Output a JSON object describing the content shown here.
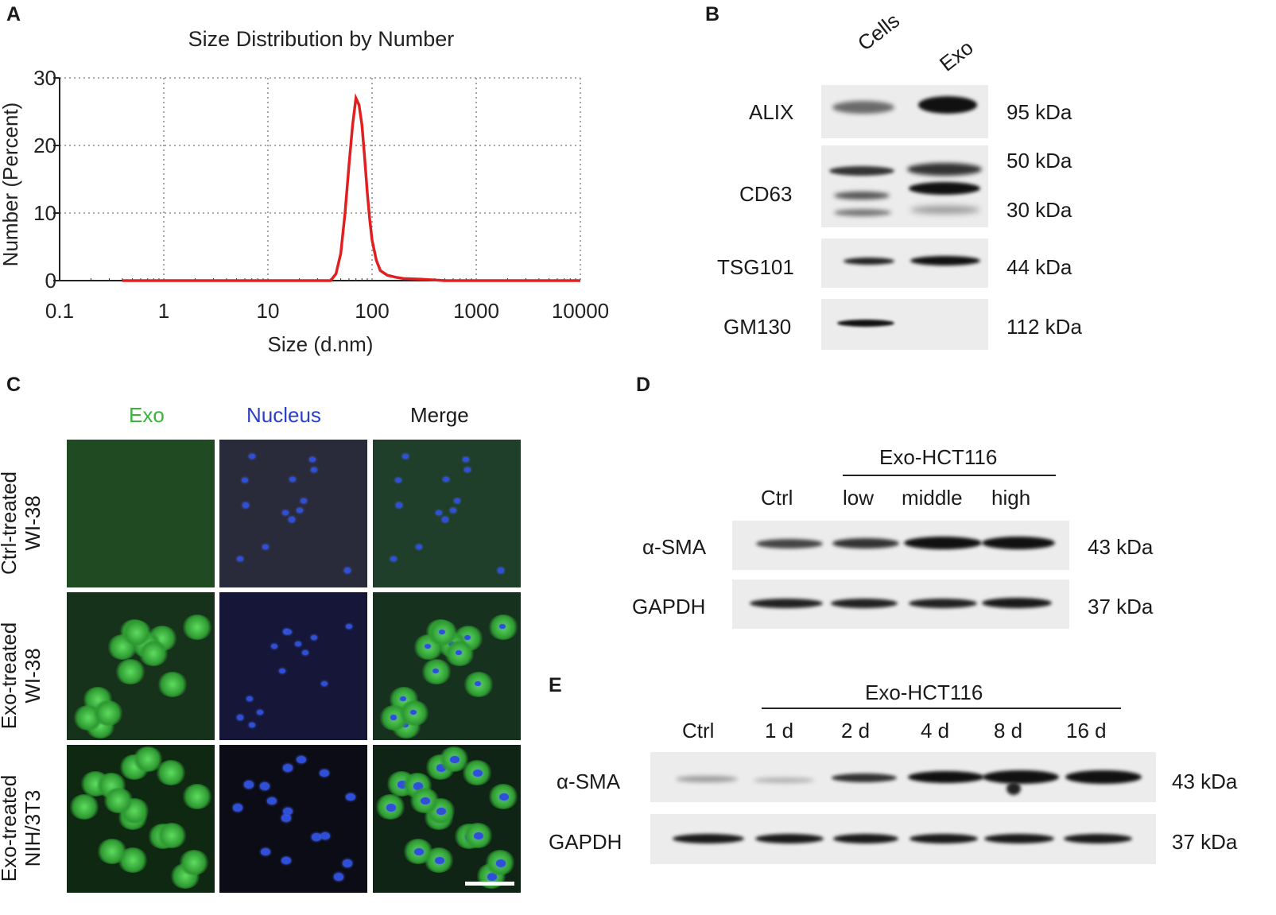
{
  "panels": {
    "A": {
      "label": "A",
      "chart_data": {
        "type": "line",
        "title": "Size Distribution by Number",
        "xlabel": "Size (d.nm)",
        "ylabel": "Number (Percent)",
        "xscale": "log",
        "xlim": [
          0.1,
          10000
        ],
        "ylim": [
          0,
          30
        ],
        "xticks": [
          "0.1",
          "1",
          "10",
          "100",
          "1000",
          "10000"
        ],
        "yticks": [
          "0",
          "10",
          "20",
          "30"
        ],
        "grid": true,
        "series": [
          {
            "color": "#e02020",
            "x": [
              0.4,
              1,
              10,
              40,
              45,
              50,
              55,
              60,
              65,
              70,
              75,
              80,
              85,
              90,
              95,
              100,
              110,
              120,
              140,
              170,
              200,
              300,
              500,
              1000,
              10000
            ],
            "y": [
              0,
              0,
              0,
              0,
              1,
              4,
              10,
              17,
              23,
              27,
              26,
              23,
              18,
              13,
              9,
              6,
              3,
              1.5,
              0.8,
              0.5,
              0.3,
              0.2,
              0,
              0,
              0
            ]
          }
        ]
      }
    },
    "B": {
      "label": "B",
      "lanes": [
        "Cells",
        "Exo"
      ],
      "rows": [
        {
          "protein": "ALIX",
          "mw": [
            "95 kDa"
          ]
        },
        {
          "protein": "CD63",
          "mw": [
            "50 kDa",
            "30 kDa"
          ]
        },
        {
          "protein": "TSG101",
          "mw": [
            "44 kDa"
          ]
        },
        {
          "protein": "GM130",
          "mw": [
            "112 kDa"
          ]
        }
      ]
    },
    "C": {
      "label": "C",
      "columns": [
        "Exo",
        "Nucleus",
        "Merge"
      ],
      "rows": [
        {
          "line1": "Ctrl-treated",
          "line2": "WI-38"
        },
        {
          "line1": "Exo-treated",
          "line2": "WI-38"
        },
        {
          "line1": "Exo-treated",
          "line2": "NIH/3T3"
        }
      ],
      "colors": {
        "exo": "#3bb43b",
        "nucleus": "#2b3fc8",
        "merge": "#1a1a1a"
      }
    },
    "D": {
      "label": "D",
      "group": "Exo-HCT116",
      "lanes": [
        "Ctrl",
        "low",
        "middle",
        "high"
      ],
      "rows": [
        {
          "protein": "α-SMA",
          "mw": "43 kDa"
        },
        {
          "protein": "GAPDH",
          "mw": "37 kDa"
        }
      ]
    },
    "E": {
      "label": "E",
      "group": "Exo-HCT116",
      "lanes": [
        "Ctrl",
        "1 d",
        "2 d",
        "4 d",
        "8 d",
        "16 d"
      ],
      "rows": [
        {
          "protein": "α-SMA",
          "mw": "43 kDa"
        },
        {
          "protein": "GAPDH",
          "mw": "37 kDa"
        }
      ]
    }
  }
}
